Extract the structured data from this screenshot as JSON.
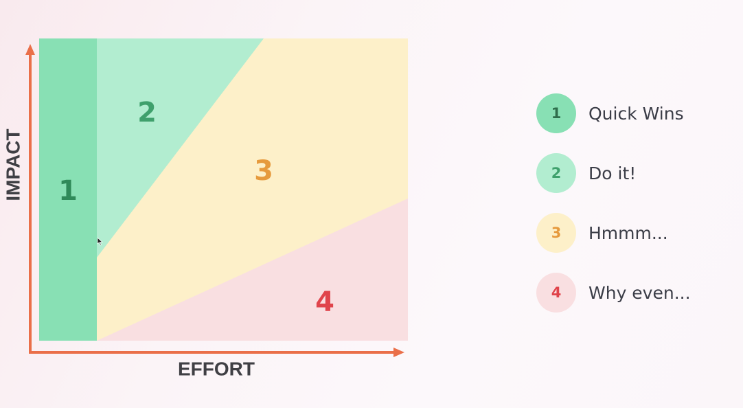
{
  "axes": {
    "x_label": "EFFORT",
    "y_label": "IMPACT"
  },
  "regions": [
    {
      "number": "1",
      "fill": "#88e0b4",
      "text_color": "#2f8a59"
    },
    {
      "number": "2",
      "fill": "#b2edd0",
      "text_color": "#3fa06c"
    },
    {
      "number": "3",
      "fill": "#fdf0c9",
      "text_color": "#e69a3d"
    },
    {
      "number": "4",
      "fill": "#f9dfe1",
      "text_color": "#e0444b"
    }
  ],
  "legend": [
    {
      "number": "1",
      "label": "Quick Wins",
      "badge_color": "#88e0b4",
      "text_color": "#2f6e4c"
    },
    {
      "number": "2",
      "label": "Do it!",
      "badge_color": "#b2edd0",
      "text_color": "#3fa06c"
    },
    {
      "number": "3",
      "label": "Hmmm...",
      "badge_color": "#fdf0c9",
      "text_color": "#e69a3d"
    },
    {
      "number": "4",
      "label": "Why even...",
      "badge_color": "#f9dfe1",
      "text_color": "#e0444b"
    }
  ],
  "colors": {
    "axis": "#ea6f49",
    "axis_title": "#3f3f44"
  }
}
